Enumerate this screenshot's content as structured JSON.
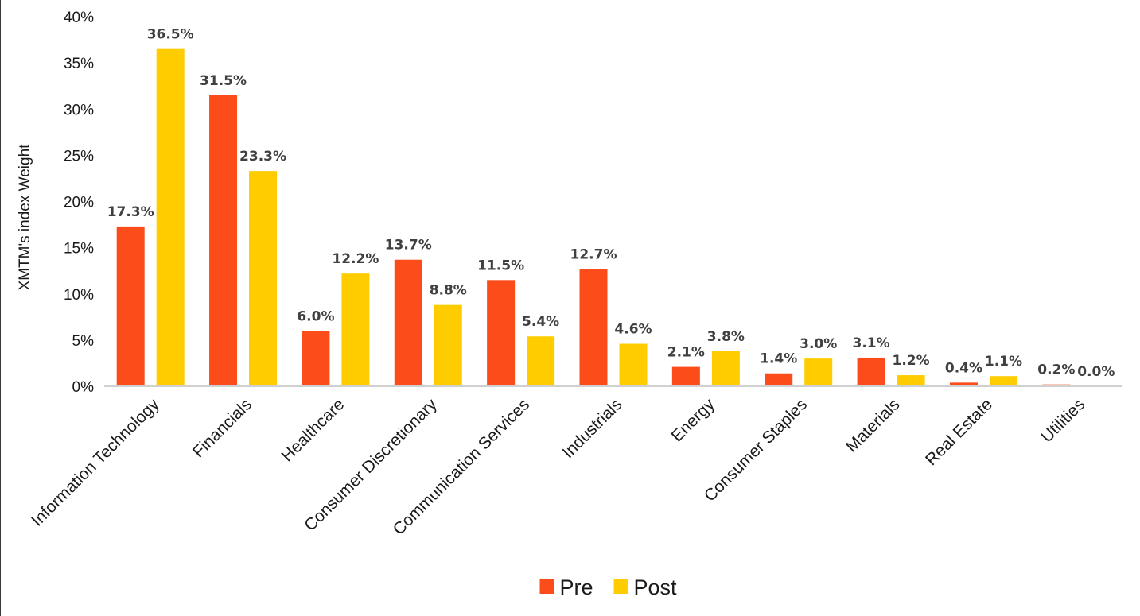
{
  "chart_data": {
    "type": "bar",
    "title": "",
    "xlabel": "",
    "ylabel": "XMTM's index Weight",
    "ylim": [
      0,
      40
    ],
    "yticks": [
      0,
      5,
      10,
      15,
      20,
      25,
      30,
      35,
      40
    ],
    "ytick_labels": [
      "0%",
      "5%",
      "10%",
      "15%",
      "20%",
      "25%",
      "30%",
      "35%",
      "40%"
    ],
    "grid": false,
    "legend_position": "bottom-center",
    "categories": [
      "Information Technology",
      "Financials",
      "Healthcare",
      "Consumer Discretionary",
      "Communication Services",
      "Industrials",
      "Energy",
      "Consumer Staples",
      "Materials",
      "Real Estate",
      "Utilities"
    ],
    "series": [
      {
        "name": "Pre",
        "color": "#FC4C1A",
        "values": [
          17.3,
          31.5,
          6.0,
          13.7,
          11.5,
          12.7,
          2.1,
          1.4,
          3.1,
          0.4,
          0.2
        ],
        "labels": [
          "17.3%",
          "31.5%",
          "6.0%",
          "13.7%",
          "11.5%",
          "12.7%",
          "2.1%",
          "1.4%",
          "3.1%",
          "0.4%",
          "0.2%"
        ]
      },
      {
        "name": "Post",
        "color": "#FFCC00",
        "values": [
          36.5,
          23.3,
          12.2,
          8.8,
          5.4,
          4.6,
          3.8,
          3.0,
          1.2,
          1.1,
          0.0
        ],
        "labels": [
          "36.5%",
          "23.3%",
          "12.2%",
          "8.8%",
          "5.4%",
          "4.6%",
          "3.8%",
          "3.0%",
          "1.2%",
          "1.1%",
          "0.0%"
        ]
      }
    ]
  }
}
